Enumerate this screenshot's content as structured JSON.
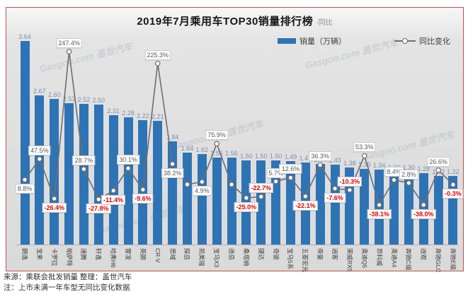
{
  "chart_data": {
    "type": "bar+line",
    "title": "2019年7月乘用车TOP30销量排行榜",
    "title_suffix": "-同比",
    "legend": {
      "bar": "销量（万辆）",
      "line": "同比变化"
    },
    "categories": [
      "朗逸",
      "宝来",
      "卡罗拉",
      "帕萨特",
      "速腾",
      "轩逸",
      "哈弗H6",
      "雷凌",
      "英朗",
      "CR-V",
      "思域",
      "探岳",
      "凯美瑞",
      "宝马X3",
      "途岳",
      "桑塔纳",
      "捷达",
      "奇骏",
      "宝马5系",
      "五菱宏光",
      "帝豪",
      "逍客",
      "荣威RX5",
      "奥迪Q5",
      "昂科威",
      "奥迪A4",
      "奔驰C级",
      "途观",
      "奔驰GLC",
      "奔驰E级"
    ],
    "series": [
      {
        "name": "销量（万辆）",
        "type": "bar",
        "values": [
          3.64,
          2.67,
          2.6,
          2.53,
          2.52,
          2.5,
          2.31,
          2.28,
          2.22,
          2.21,
          1.84,
          1.64,
          1.62,
          1.56,
          1.56,
          1.5,
          1.5,
          1.5,
          1.49,
          1.47,
          1.44,
          1.43,
          1.38,
          1.35,
          1.34,
          1.3,
          1.3,
          1.28,
          1.23,
          1.22
        ]
      },
      {
        "name": "同比变化",
        "type": "line",
        "values": [
          8.8,
          47.5,
          -26.4,
          247.4,
          28.7,
          -27.8,
          -11.4,
          30.1,
          -9.6,
          225.3,
          38.2,
          null,
          4.9,
          75.9,
          null,
          -25.0,
          -22.7,
          5.7,
          12.6,
          -22.1,
          36.3,
          -7.6,
          -10.3,
          53.3,
          -38.1,
          8.4,
          2.8,
          -38.0,
          26.6,
          -0.3
        ]
      }
    ],
    "bar_value_labels": [
      "3.64",
      "2.67",
      "2.60",
      "2.53",
      "2.52",
      "2.50",
      "2.31",
      "2.28",
      "2.22",
      "2.21",
      "1.84",
      "1.64",
      "1.62",
      "1.56",
      "1.56",
      "1.50",
      "1.50",
      "1.50",
      "1.49",
      "1.47",
      "1.44",
      "1.43",
      "1.38",
      "1.35",
      "1.34",
      "1.30",
      "1.30",
      "1.28",
      "1.23",
      "1.22"
    ],
    "yoy_labels": [
      "8.8%",
      "47.5%",
      "-26.4%",
      "247.4%",
      "28.7%",
      "-27.8%",
      "-11.4%",
      "30.1%",
      "-9.6%",
      "225.3%",
      "38.2%",
      null,
      "4.9%",
      "75.9%",
      null,
      "-25.0%",
      "-22.7%",
      "5.7%",
      "12.6%",
      "-22.1%",
      "36.3%",
      "-7.6%",
      "-10.3%",
      "53.3%",
      "-38.1%",
      "8.4%",
      "2.8%",
      "-38.0%",
      "26.6%",
      "-0.3%"
    ],
    "yoy_label_side": [
      "b",
      "a",
      "b",
      "a",
      "a",
      "b",
      "b",
      "a",
      "b",
      "a",
      "b",
      null,
      "b",
      "a",
      null,
      "b",
      "a",
      "a",
      "a",
      "b",
      "a",
      "b",
      "a",
      "a",
      "b",
      "a",
      "a",
      "b",
      "a",
      "b"
    ],
    "ylim_bar": [
      0,
      3.64
    ],
    "grid": false,
    "legend_position": "top",
    "colors": {
      "bar": "#2e74b5",
      "line": "#6e6e6e",
      "positive_label": "#595959",
      "negative_label": "#e60000",
      "frame_border": "#c0504d",
      "value_label": "#7d90a9"
    }
  },
  "watermark": "Gasgoo.com 盖世汽车",
  "footer": {
    "source": "来源：乘联会批发销量  整理：盖世汽车",
    "note": "注：上市未满一年车型无同比变化数据"
  }
}
